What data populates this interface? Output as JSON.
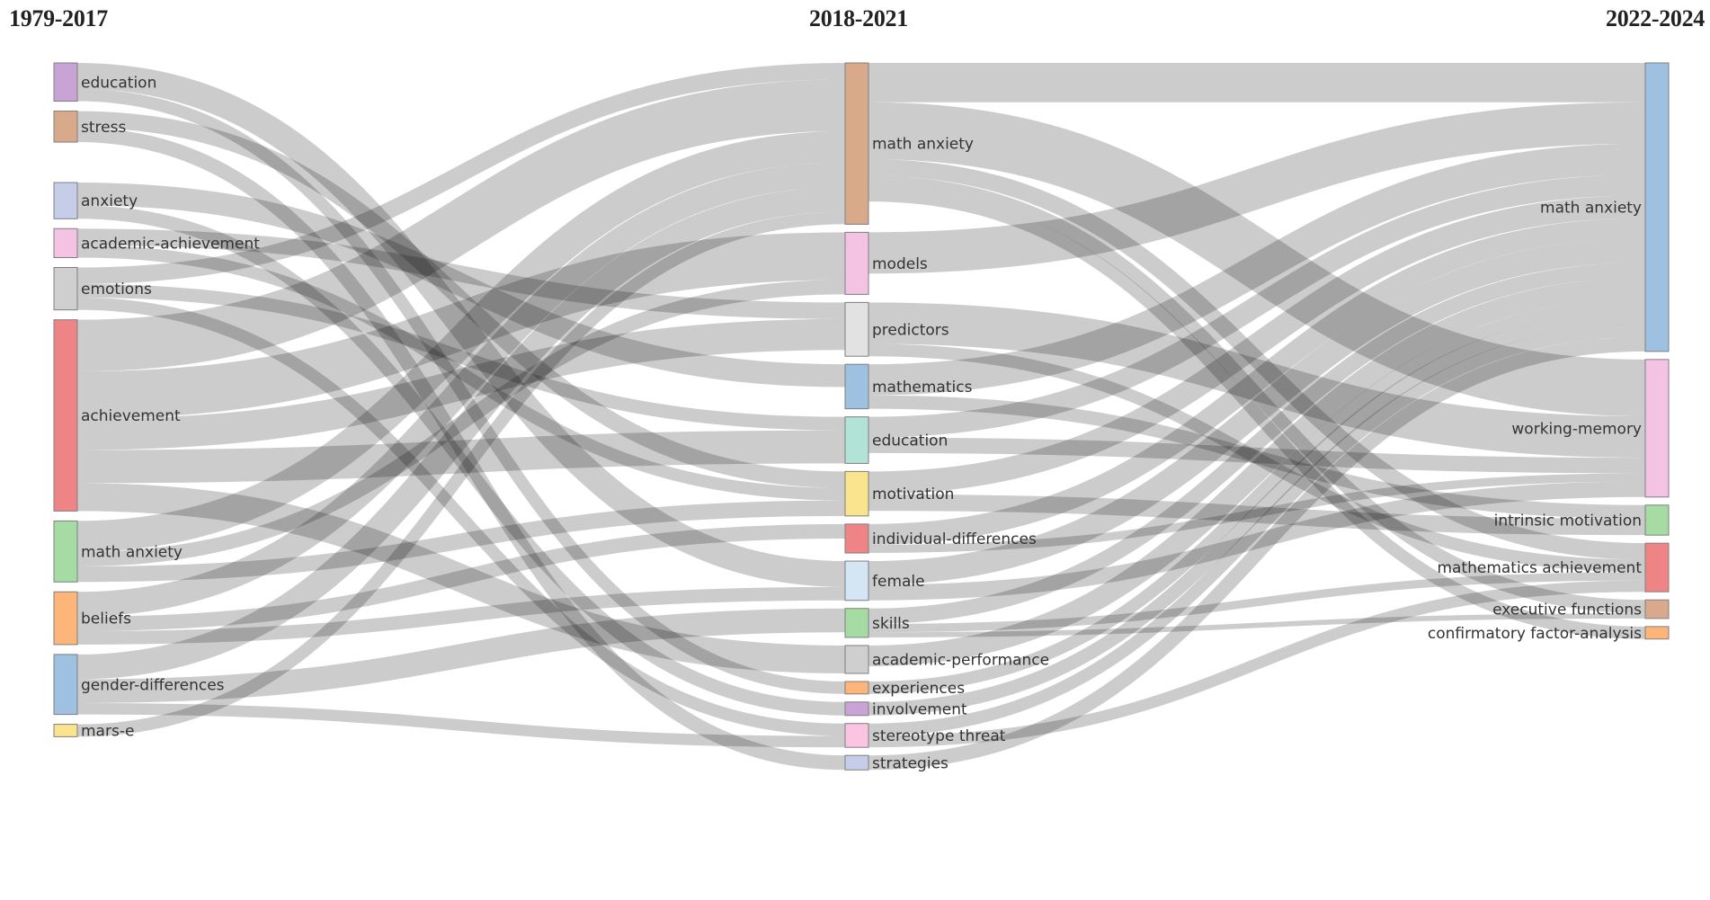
{
  "periods": [
    "1979-2017",
    "2018-2021",
    "2022-2024"
  ],
  "nodes": [
    {
      "id": "a_education",
      "label": "education",
      "period": 0,
      "color": "#c9a3d6"
    },
    {
      "id": "a_stress",
      "label": "stress",
      "period": 0,
      "color": "#d9a98c"
    },
    {
      "id": "a_anxiety",
      "label": "anxiety",
      "period": 0,
      "color": "#c5cde9"
    },
    {
      "id": "a_acad",
      "label": "academic-achievement",
      "period": 0,
      "color": "#f4c2e2"
    },
    {
      "id": "a_emotions",
      "label": "emotions",
      "period": 0,
      "color": "#cfcfcf"
    },
    {
      "id": "a_achievement",
      "label": "achievement",
      "period": 0,
      "color": "#ef8486"
    },
    {
      "id": "a_mathanx",
      "label": "math anxiety",
      "period": 0,
      "color": "#a6dca4"
    },
    {
      "id": "a_beliefs",
      "label": "beliefs",
      "period": 0,
      "color": "#fdb57a"
    },
    {
      "id": "a_gender",
      "label": "gender-differences",
      "period": 0,
      "color": "#9ec1e2"
    },
    {
      "id": "a_mars",
      "label": "mars-e",
      "period": 0,
      "color": "#fbe48e"
    },
    {
      "id": "b_mathanx",
      "label": "math anxiety",
      "period": 1,
      "color": "#d9a98c"
    },
    {
      "id": "b_models",
      "label": "models",
      "period": 1,
      "color": "#f4c2e2"
    },
    {
      "id": "b_predictors",
      "label": "predictors",
      "period": 1,
      "color": "#e2e2e2"
    },
    {
      "id": "b_mathematics",
      "label": "mathematics",
      "period": 1,
      "color": "#9ec1e2"
    },
    {
      "id": "b_education",
      "label": "education",
      "period": 1,
      "color": "#b2e3d6"
    },
    {
      "id": "b_motivation",
      "label": "motivation",
      "period": 1,
      "color": "#fbe48e"
    },
    {
      "id": "b_indiv",
      "label": "individual-differences",
      "period": 1,
      "color": "#ef8486"
    },
    {
      "id": "b_female",
      "label": "female",
      "period": 1,
      "color": "#d4e6f3"
    },
    {
      "id": "b_skills",
      "label": "skills",
      "period": 1,
      "color": "#a6dca4"
    },
    {
      "id": "b_acadperf",
      "label": "academic-performance",
      "period": 1,
      "color": "#cfcfcf"
    },
    {
      "id": "b_experiences",
      "label": "experiences",
      "period": 1,
      "color": "#fdb57a"
    },
    {
      "id": "b_involvement",
      "label": "involvement",
      "period": 1,
      "color": "#c9a3d6"
    },
    {
      "id": "b_stereotype",
      "label": "stereotype threat",
      "period": 1,
      "color": "#fbc5e2"
    },
    {
      "id": "b_strategies",
      "label": "strategies",
      "period": 1,
      "color": "#c5cde9"
    },
    {
      "id": "c_mathanx",
      "label": "math anxiety",
      "period": 2,
      "color": "#9ec1e2"
    },
    {
      "id": "c_wm",
      "label": "working-memory",
      "period": 2,
      "color": "#f4c2e2"
    },
    {
      "id": "c_intrinsic",
      "label": "intrinsic motivation",
      "period": 2,
      "color": "#a6dca4"
    },
    {
      "id": "c_mathach",
      "label": "mathematics achievement",
      "period": 2,
      "color": "#ef8486"
    },
    {
      "id": "c_exec",
      "label": "executive functions",
      "period": 2,
      "color": "#d9a98c"
    },
    {
      "id": "c_cfa",
      "label": "confirmatory factor-analysis",
      "period": 2,
      "color": "#fdb57a"
    }
  ],
  "links": [
    {
      "source": "a_education",
      "target": "b_female",
      "value": 25
    },
    {
      "source": "a_education",
      "target": "b_experiences",
      "value": 12
    },
    {
      "source": "a_stress",
      "target": "b_motivation",
      "value": 16
    },
    {
      "source": "a_stress",
      "target": "b_strategies",
      "value": 14
    },
    {
      "source": "a_anxiety",
      "target": "b_mathematics",
      "value": 22
    },
    {
      "source": "a_anxiety",
      "target": "b_involvement",
      "value": 13
    },
    {
      "source": "a_acad",
      "target": "b_predictors",
      "value": 16
    },
    {
      "source": "a_acad",
      "target": "b_motivation",
      "value": 12
    },
    {
      "source": "a_emotions",
      "target": "b_mathanx",
      "value": 16
    },
    {
      "source": "a_emotions",
      "target": "b_education",
      "value": 13
    },
    {
      "source": "a_emotions",
      "target": "b_stereotype",
      "value": 12
    },
    {
      "source": "a_achievement",
      "target": "b_mathanx",
      "value": 50
    },
    {
      "source": "a_achievement",
      "target": "b_models",
      "value": 46
    },
    {
      "source": "a_achievement",
      "target": "b_predictors",
      "value": 30
    },
    {
      "source": "a_achievement",
      "target": "b_education",
      "value": 32
    },
    {
      "source": "a_achievement",
      "target": "b_acadperf",
      "value": 27
    },
    {
      "source": "a_mathanx",
      "target": "b_mathanx",
      "value": 30
    },
    {
      "source": "a_mathanx",
      "target": "b_models",
      "value": 14
    },
    {
      "source": "a_mathanx",
      "target": "b_motivation",
      "value": 15
    },
    {
      "source": "a_beliefs",
      "target": "b_mathanx",
      "value": 24
    },
    {
      "source": "a_beliefs",
      "target": "b_indiv",
      "value": 14
    },
    {
      "source": "a_beliefs",
      "target": "b_female",
      "value": 13
    },
    {
      "source": "a_gender",
      "target": "b_mathanx",
      "value": 24
    },
    {
      "source": "a_gender",
      "target": "b_skills",
      "value": 23
    },
    {
      "source": "a_gender",
      "target": "b_stereotype",
      "value": 11
    },
    {
      "source": "a_mars",
      "target": "b_mathanx",
      "value": 12
    },
    {
      "source": "b_mathanx",
      "target": "c_mathanx",
      "value": 38
    },
    {
      "source": "b_mathanx",
      "target": "c_wm",
      "value": 55
    },
    {
      "source": "b_mathanx",
      "target": "c_mathach",
      "value": 16
    },
    {
      "source": "b_mathanx",
      "target": "c_exec",
      "value": 13
    },
    {
      "source": "b_mathanx",
      "target": "c_cfa",
      "value": 12
    },
    {
      "source": "b_models",
      "target": "c_mathanx",
      "value": 40
    },
    {
      "source": "b_predictors",
      "target": "c_wm",
      "value": 40
    },
    {
      "source": "b_predictors",
      "target": "c_mathach",
      "value": 12
    },
    {
      "source": "b_mathematics",
      "target": "c_mathanx",
      "value": 30
    },
    {
      "source": "b_mathematics",
      "target": "c_intrinsic",
      "value": 13
    },
    {
      "source": "b_education",
      "target": "c_mathanx",
      "value": 20
    },
    {
      "source": "b_education",
      "target": "c_wm",
      "value": 15
    },
    {
      "source": "b_motivation",
      "target": "c_mathanx",
      "value": 22
    },
    {
      "source": "b_motivation",
      "target": "c_intrinsic",
      "value": 16
    },
    {
      "source": "b_indiv",
      "target": "c_mathanx",
      "value": 20
    },
    {
      "source": "b_indiv",
      "target": "c_wm",
      "value": 8
    },
    {
      "source": "b_female",
      "target": "c_mathanx",
      "value": 23
    },
    {
      "source": "b_female",
      "target": "c_wm",
      "value": 15
    },
    {
      "source": "b_skills",
      "target": "c_mathanx",
      "value": 15
    },
    {
      "source": "b_skills",
      "target": "c_mathach",
      "value": 8
    },
    {
      "source": "b_skills",
      "target": "c_exec",
      "value": 5
    },
    {
      "source": "b_acadperf",
      "target": "c_mathanx",
      "value": 20
    },
    {
      "source": "b_experiences",
      "target": "c_mathanx",
      "value": 12
    },
    {
      "source": "b_involvement",
      "target": "c_mathanx",
      "value": 13
    },
    {
      "source": "b_stereotype",
      "target": "c_mathanx",
      "value": 12
    },
    {
      "source": "b_stereotype",
      "target": "c_mathach",
      "value": 11
    },
    {
      "source": "b_strategies",
      "target": "c_mathanx",
      "value": 14
    }
  ]
}
